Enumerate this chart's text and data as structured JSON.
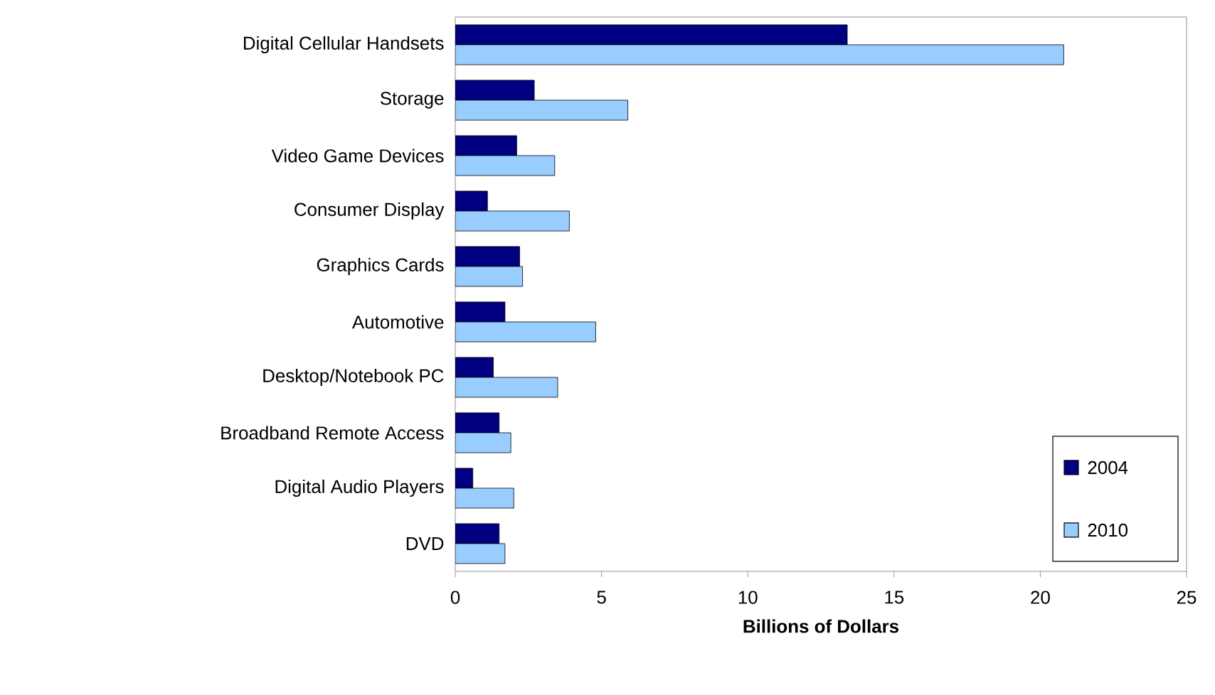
{
  "chart_data": {
    "type": "bar",
    "orientation": "horizontal",
    "xlabel": "Billions of Dollars",
    "categories": [
      "Digital Cellular Handsets",
      "Storage",
      "Video Game Devices",
      "Consumer Display",
      "Graphics Cards",
      "Automotive",
      "Desktop/Notebook PC",
      "Broadband Remote Access",
      "Digital Audio Players",
      "DVD"
    ],
    "series": [
      {
        "name": "2004",
        "color": "#000080",
        "values": [
          13.4,
          2.7,
          2.1,
          1.1,
          2.2,
          1.7,
          1.3,
          1.5,
          0.6,
          1.5
        ]
      },
      {
        "name": "2010",
        "color": "#99ccff",
        "values": [
          20.8,
          5.9,
          3.4,
          3.9,
          2.3,
          4.8,
          3.5,
          1.9,
          2.0,
          1.7
        ]
      }
    ],
    "xlim": [
      0,
      25
    ],
    "xticks": [
      0,
      5,
      10,
      15,
      20,
      25
    ],
    "legend": "bottom right",
    "grid": false
  }
}
